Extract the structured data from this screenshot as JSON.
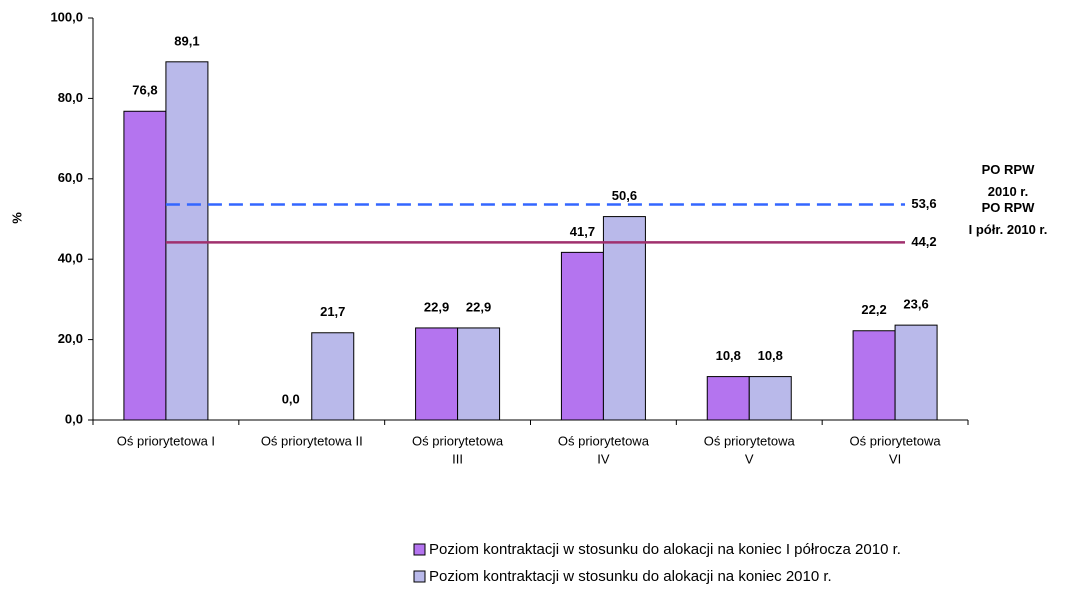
{
  "chart_data": {
    "type": "bar",
    "y_axis_label": "%",
    "categories": [
      [
        "Oś priorytetowa I"
      ],
      [
        "Oś priorytetowa II"
      ],
      [
        "Oś priorytetowa",
        "III"
      ],
      [
        "Oś priorytetowa",
        "IV"
      ],
      [
        "Oś priorytetowa",
        "V"
      ],
      [
        "Oś priorytetowa",
        "VI"
      ]
    ],
    "series": [
      {
        "name": "Poziom kontraktacji w stosunku do alokacji na koniec I półrocza 2010 r.",
        "color": "#b474ef",
        "values": [
          76.8,
          0,
          22.9,
          41.7,
          10.8,
          22.2
        ],
        "value_labels": [
          "76,8",
          "0,0",
          "22,9",
          "41,7",
          "10,8",
          "22,2"
        ]
      },
      {
        "name": "Poziom kontraktacji w stosunku do alokacji na koniec 2010 r.",
        "color": "#b9b9ea",
        "values": [
          89.1,
          21.7,
          22.9,
          50.6,
          10.8,
          23.6
        ],
        "value_labels": [
          "89,1",
          "21,7",
          "22,9",
          "50,6",
          "10,8",
          "23,6"
        ]
      }
    ],
    "reference_lines": [
      {
        "value": 53.6,
        "value_label": "53,6",
        "label": [
          "PO RPW",
          "2010 r."
        ],
        "color": "#3366ff",
        "dashed": true
      },
      {
        "value": 44.2,
        "value_label": "44,2",
        "label": [
          "PO RPW",
          "I półr. 2010 r."
        ],
        "color": "#a0306e",
        "dashed": false
      }
    ],
    "ylim": [
      0,
      100
    ],
    "yticks": [
      {
        "value": 0,
        "label": "0,0"
      },
      {
        "value": 20,
        "label": "20,0"
      },
      {
        "value": 40,
        "label": "40,0"
      },
      {
        "value": 60,
        "label": "60,0"
      },
      {
        "value": 80,
        "label": "80,0"
      },
      {
        "value": 100,
        "label": "100,0"
      }
    ],
    "grid": false
  }
}
